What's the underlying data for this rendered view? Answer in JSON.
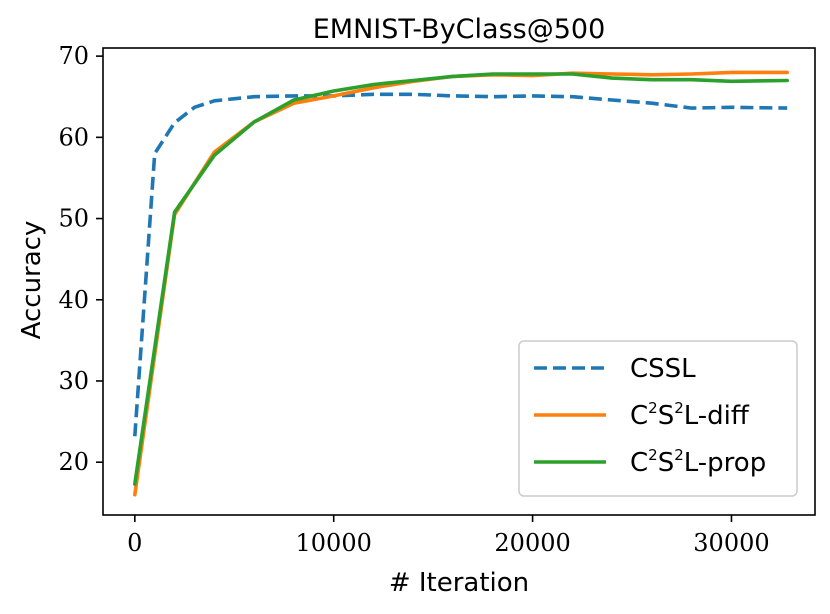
{
  "chart_data": {
    "type": "line",
    "title": "EMNIST-ByClass@500",
    "xlabel": "# Iteration",
    "ylabel": "Accuracy",
    "xlim": [
      -1600,
      34200
    ],
    "ylim": [
      13.5,
      71
    ],
    "xticks": [
      0,
      10000,
      20000,
      30000
    ],
    "yticks": [
      20,
      30,
      40,
      50,
      60,
      70
    ],
    "xtick_labels": [
      "0",
      "10000",
      "20000",
      "30000"
    ],
    "ytick_labels": [
      "20",
      "30",
      "40",
      "50",
      "60",
      "70"
    ],
    "grid": false,
    "legend_position": "lower-right",
    "series": [
      {
        "name": "CSSL",
        "color": "#1f77b4",
        "dash": "dashed",
        "x": [
          0,
          1000,
          2000,
          3000,
          4000,
          6000,
          8000,
          10000,
          12000,
          14000,
          16000,
          18000,
          20000,
          22000,
          24000,
          26000,
          28000,
          30000,
          32800
        ],
        "y": [
          23.2,
          58.0,
          61.8,
          63.7,
          64.5,
          65.0,
          65.1,
          65.1,
          65.3,
          65.3,
          65.1,
          65.0,
          65.1,
          65.0,
          64.6,
          64.2,
          63.6,
          63.7,
          63.6
        ]
      },
      {
        "name": "C2S2L-diff",
        "name_parts": [
          "C",
          "2",
          "S",
          "2",
          "L-diff"
        ],
        "color": "#ff7f0e",
        "dash": "solid",
        "x": [
          0,
          2000,
          4000,
          6000,
          8000,
          10000,
          12000,
          14000,
          16000,
          18000,
          20000,
          22000,
          24000,
          26000,
          28000,
          30000,
          32800
        ],
        "y": [
          16.0,
          50.5,
          58.2,
          61.9,
          64.2,
          65.1,
          66.1,
          66.9,
          67.5,
          67.7,
          67.6,
          67.9,
          67.8,
          67.7,
          67.8,
          68.0,
          68.0
        ]
      },
      {
        "name": "C2S2L-prop",
        "name_parts": [
          "C",
          "2",
          "S",
          "2",
          "L-prop"
        ],
        "color": "#2ca02c",
        "dash": "solid",
        "x": [
          0,
          2000,
          4000,
          6000,
          8000,
          10000,
          12000,
          14000,
          16000,
          18000,
          20000,
          22000,
          24000,
          26000,
          28000,
          30000,
          32800
        ],
        "y": [
          17.3,
          50.8,
          57.8,
          61.9,
          64.6,
          65.7,
          66.5,
          67.0,
          67.5,
          67.8,
          67.8,
          67.8,
          67.3,
          67.1,
          67.1,
          66.9,
          67.0
        ]
      }
    ]
  }
}
